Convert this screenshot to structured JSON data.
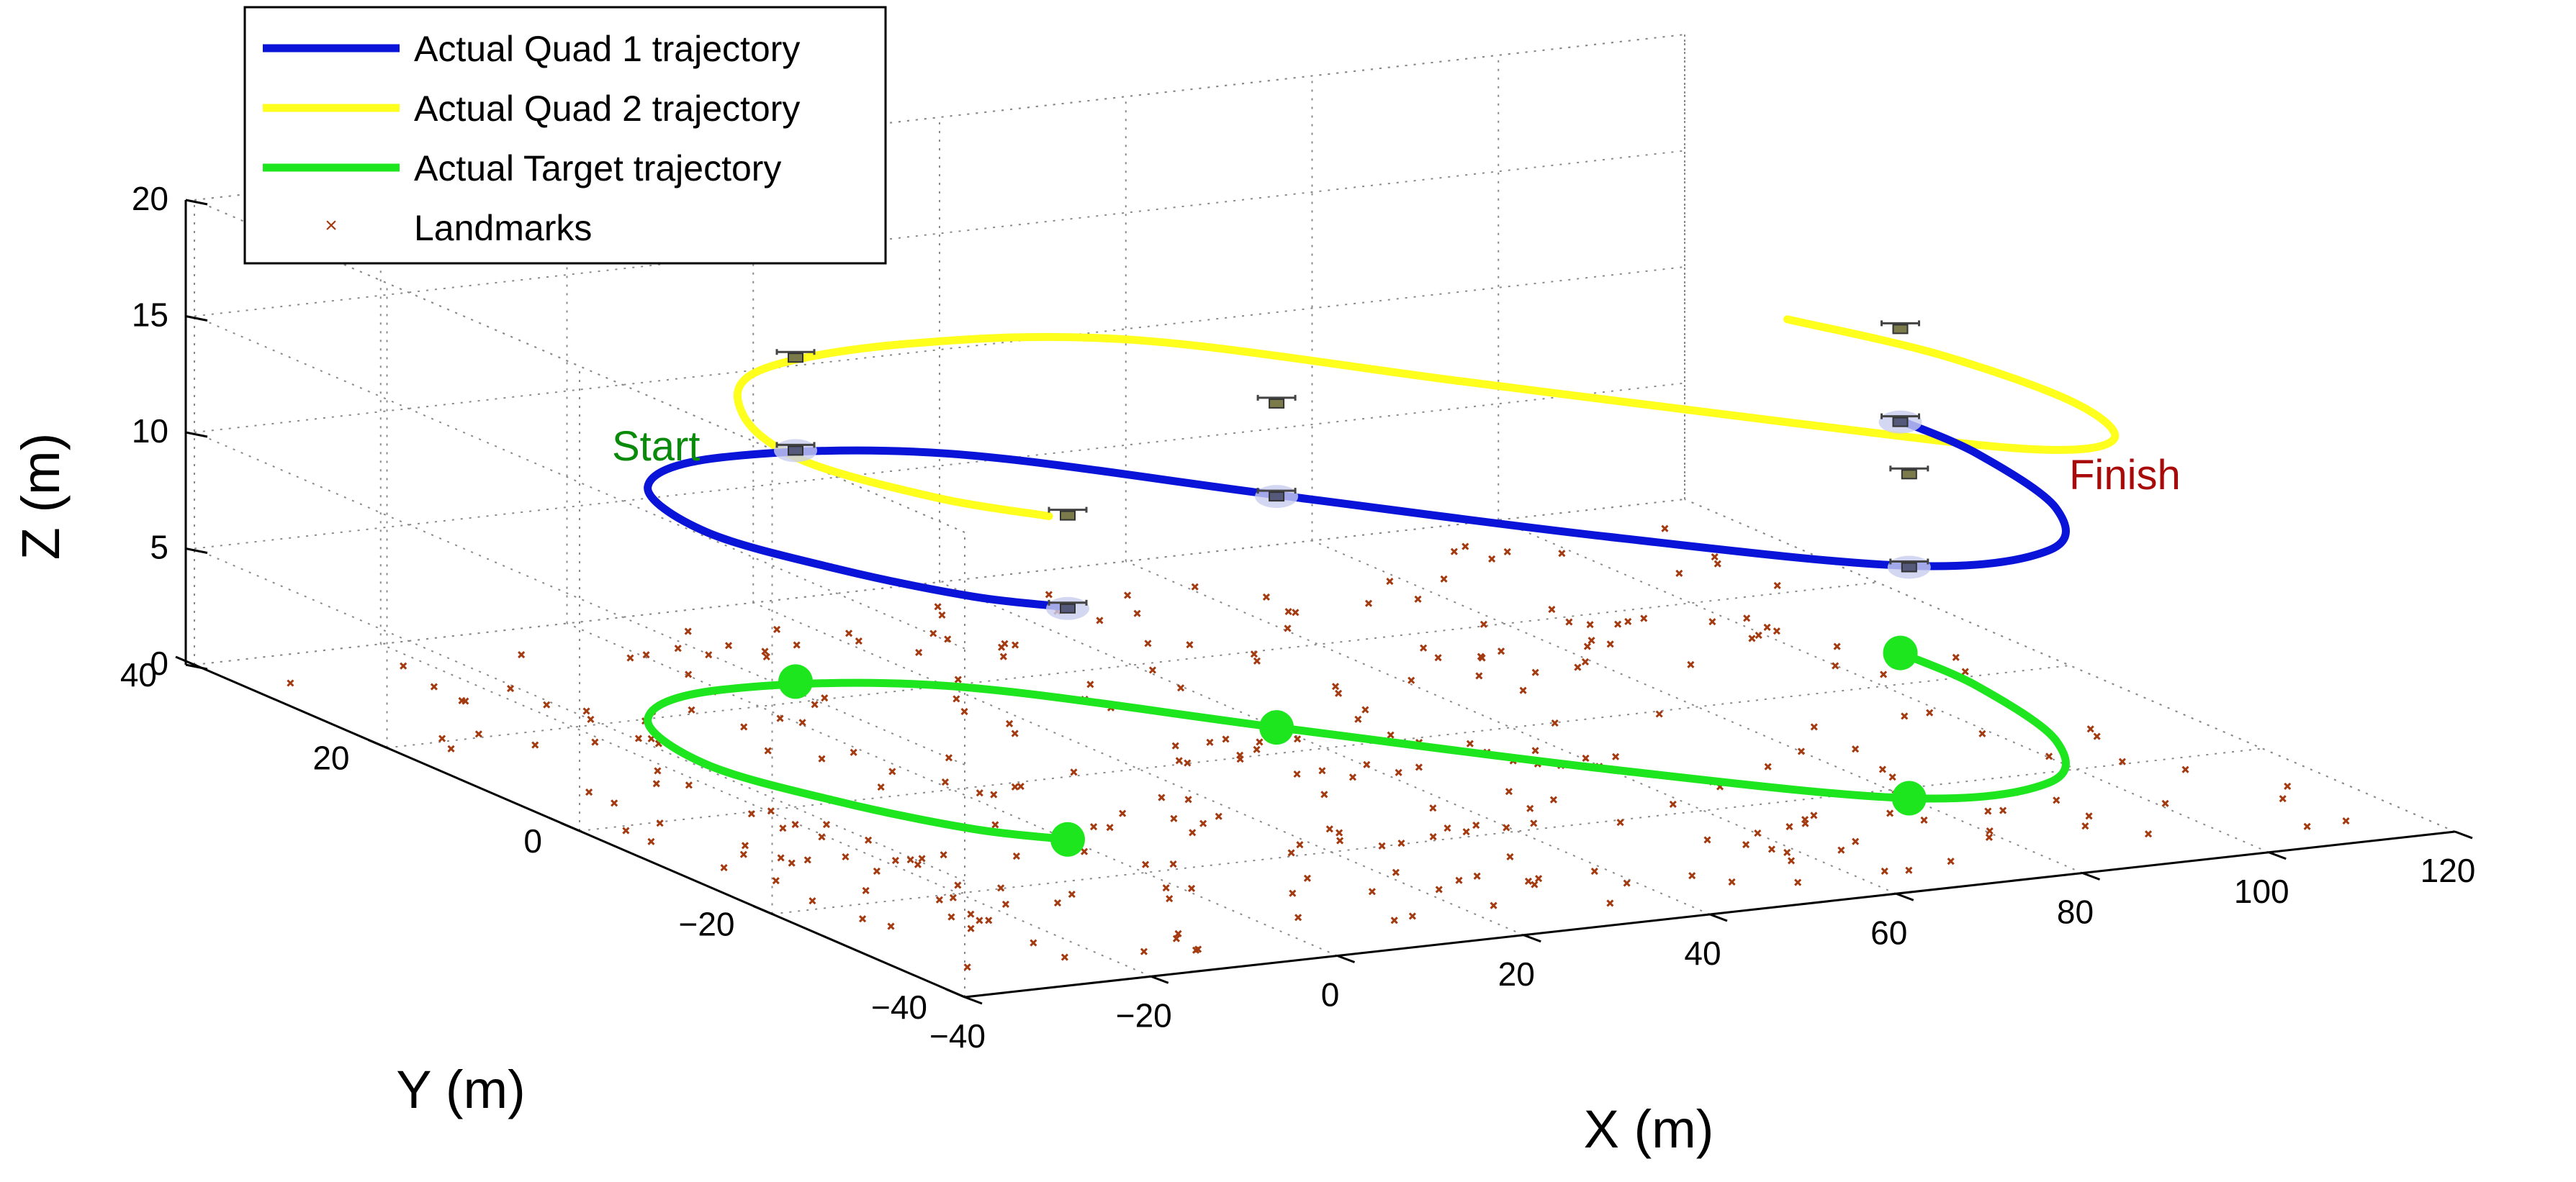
{
  "chart_data": {
    "type": "line3d",
    "title": "",
    "xlabel": "X (m)",
    "ylabel": "Y (m)",
    "zlabel": "Z (m)",
    "xlim": [
      -40,
      120
    ],
    "ylim": [
      -40,
      40
    ],
    "zlim": [
      0,
      20
    ],
    "grid": true,
    "legend_position": "top-left",
    "x_ticks": [
      "−40",
      "−20",
      "0",
      "20",
      "40",
      "60",
      "80",
      "100",
      "120"
    ],
    "y_ticks": [
      "−40",
      "−20",
      "0",
      "20",
      "40"
    ],
    "z_ticks": [
      "0",
      "5",
      "10",
      "15",
      "20"
    ],
    "colors": {
      "quad1": "#0a14d8",
      "quad2": "#ffff1e",
      "target": "#1ee61e",
      "landmarks": "#a33a10",
      "start": "#0a8a0a",
      "finish": "#a80a0a"
    },
    "series": [
      {
        "name": "Actual Quad 1 trajectory",
        "color": "#0a14d8",
        "z": 10,
        "x": [
          0,
          -6,
          -12,
          -16,
          -12,
          0,
          20,
          40,
          60,
          80,
          95,
          104,
          108,
          108
        ],
        "y": [
          -12,
          -8,
          0,
          10,
          20,
          24,
          20,
          5,
          -10,
          -22,
          -22,
          -14,
          -2,
          6
        ]
      },
      {
        "name": "Actual Quad 2 trajectory",
        "color": "#ffff1e",
        "z": 14,
        "x": [
          -2,
          -8,
          -12,
          -8,
          2,
          20,
          40,
          60,
          80,
          95,
          104,
          108,
          106,
          100
        ],
        "y": [
          -12,
          -6,
          4,
          14,
          22,
          24,
          20,
          5,
          -10,
          -20,
          -20,
          -12,
          0,
          10
        ]
      },
      {
        "name": "Actual Target trajectory",
        "color": "#1ee61e",
        "z": 0,
        "x": [
          0,
          -6,
          -12,
          -16,
          -12,
          0,
          20,
          40,
          60,
          80,
          95,
          104,
          108,
          108
        ],
        "y": [
          -12,
          -8,
          0,
          10,
          20,
          24,
          20,
          5,
          -10,
          -22,
          -22,
          -14,
          -2,
          6
        ]
      }
    ],
    "target_markers": [
      {
        "x": 0,
        "y": -12,
        "z": 0
      },
      {
        "x": 8,
        "y": 24,
        "z": 0
      },
      {
        "x": 40,
        "y": 5,
        "z": 0
      },
      {
        "x": 80,
        "y": -22,
        "z": 0
      },
      {
        "x": 108,
        "y": 6,
        "z": 0
      }
    ],
    "quad_markers": [
      {
        "series": "Actual Quad 1 trajectory",
        "x": 0,
        "y": -12,
        "z": 10
      },
      {
        "series": "Actual Quad 1 trajectory",
        "x": 8,
        "y": 24,
        "z": 10
      },
      {
        "series": "Actual Quad 1 trajectory",
        "x": 40,
        "y": 5,
        "z": 10
      },
      {
        "series": "Actual Quad 1 trajectory",
        "x": 80,
        "y": -22,
        "z": 10
      },
      {
        "series": "Actual Quad 1 trajectory",
        "x": 108,
        "y": 6,
        "z": 10
      },
      {
        "series": "Actual Quad 2 trajectory",
        "x": 0,
        "y": -12,
        "z": 14
      },
      {
        "series": "Actual Quad 2 trajectory",
        "x": 8,
        "y": 24,
        "z": 14
      },
      {
        "series": "Actual Quad 2 trajectory",
        "x": 40,
        "y": 5,
        "z": 14
      },
      {
        "series": "Actual Quad 2 trajectory",
        "x": 80,
        "y": -22,
        "z": 14
      },
      {
        "series": "Actual Quad 2 trajectory",
        "x": 108,
        "y": 6,
        "z": 14
      }
    ],
    "landmarks": {
      "name": "Landmarks",
      "count": 330,
      "x_range": [
        -40,
        120
      ],
      "y_range": [
        -40,
        40
      ],
      "z": 0
    },
    "annotations": [
      {
        "text": "Start",
        "x": -22,
        "y": 0,
        "z": 12,
        "color": "#0a8a0a"
      },
      {
        "text": "Finish",
        "x": 118,
        "y": 8,
        "z": 11,
        "color": "#a80a0a"
      }
    ]
  }
}
